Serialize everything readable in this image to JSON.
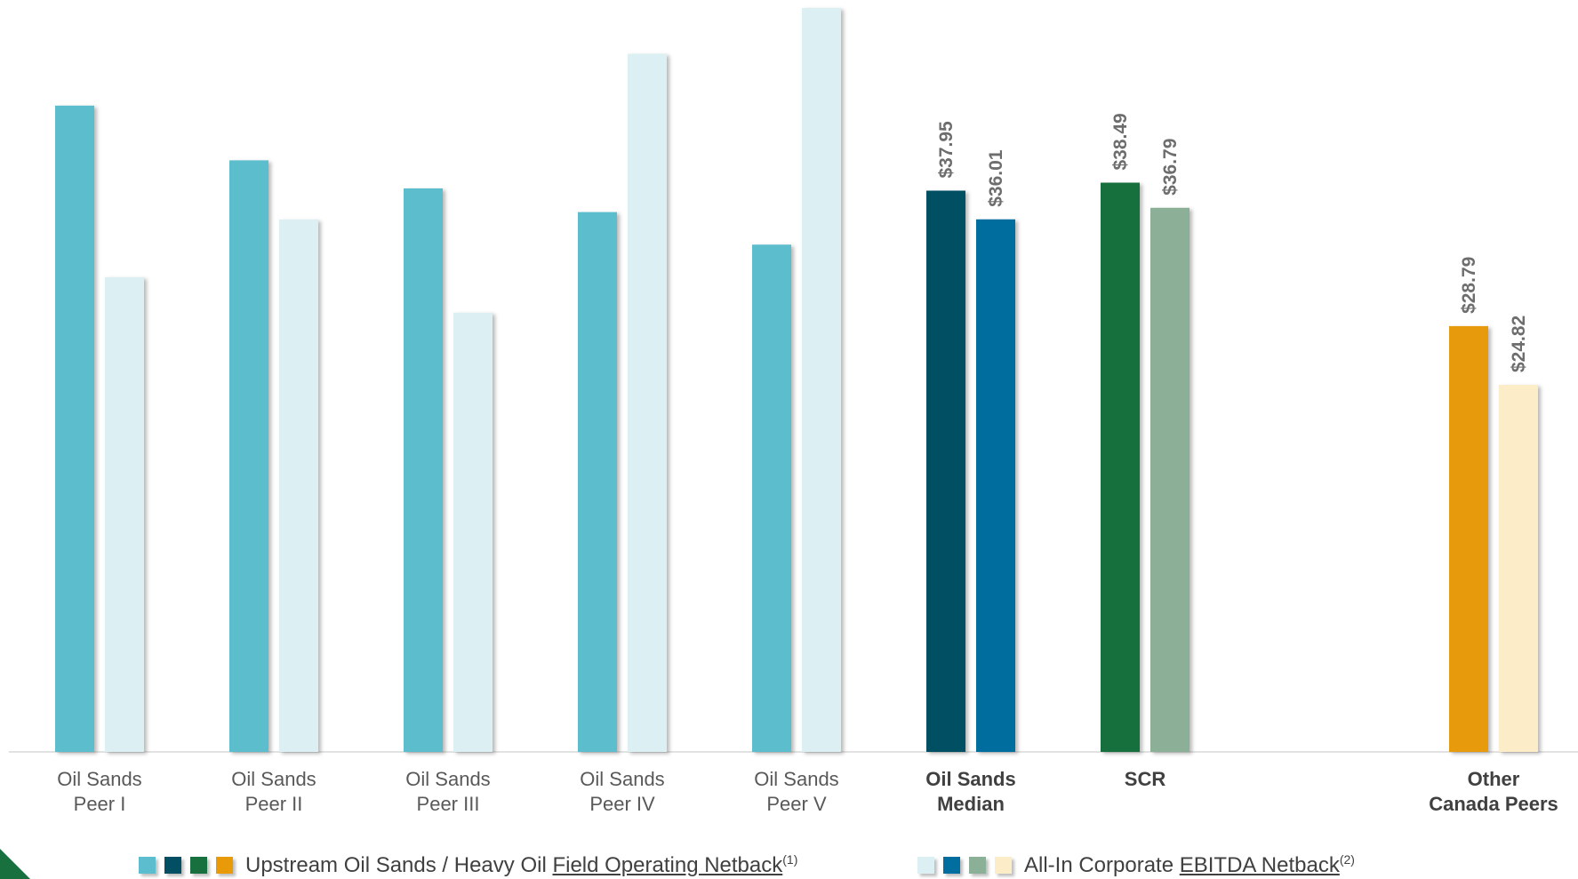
{
  "chart_data": {
    "type": "bar",
    "categories": [
      {
        "lines": [
          "Oil Sands",
          "Peer I"
        ],
        "bold": false
      },
      {
        "lines": [
          "Oil Sands",
          "Peer II"
        ],
        "bold": false
      },
      {
        "lines": [
          "Oil Sands",
          "Peer III"
        ],
        "bold": false
      },
      {
        "lines": [
          "Oil Sands",
          "Peer IV"
        ],
        "bold": false
      },
      {
        "lines": [
          "Oil Sands",
          "Peer V"
        ],
        "bold": false
      },
      {
        "lines": [
          "Oil Sands",
          "Median"
        ],
        "bold": true
      },
      {
        "lines": [
          "SCR"
        ],
        "bold": true
      },
      {
        "lines": [
          "Other",
          "Canada Peers"
        ],
        "bold": true
      }
    ],
    "series": [
      {
        "name": "Upstream Oil Sands / Heavy Oil Field Operating Netback",
        "values": [
          43.7,
          40.0,
          38.1,
          36.5,
          34.3,
          37.95,
          38.49,
          28.79
        ],
        "colors": [
          "#5bbdcd",
          "#5bbdcd",
          "#5bbdcd",
          "#5bbdcd",
          "#5bbdcd",
          "#024f63",
          "#17703e",
          "#e89a08"
        ],
        "labels": [
          "",
          "",
          "",
          "",
          "",
          "$37.95",
          "$38.49",
          "$28.79"
        ]
      },
      {
        "name": "All-In Corporate EBITDA Netback",
        "values": [
          32.1,
          36.0,
          29.7,
          47.2,
          50.3,
          36.01,
          36.79,
          24.82
        ],
        "colors": [
          "#dcf0f3",
          "#dcf0f3",
          "#dcf0f3",
          "#dcf0f3",
          "#dcf0f3",
          "#026d9f",
          "#8caf97",
          "#fdecc8"
        ],
        "labels": [
          "",
          "",
          "",
          "",
          "",
          "$36.01",
          "$36.79",
          "$24.82"
        ]
      }
    ],
    "ylim": [
      0,
      50
    ],
    "grid": false,
    "legend_position": "bottom"
  },
  "legend": {
    "series1": {
      "colors": [
        "#5bbdcd",
        "#024f63",
        "#17703e",
        "#e89a08"
      ],
      "text_plain": "Upstream Oil Sands / Heavy Oil ",
      "text_underlined": "Field Operating Netback",
      "note": "(1)"
    },
    "series2": {
      "colors": [
        "#dcf0f3",
        "#026d9f",
        "#8caf97",
        "#fdecc8"
      ],
      "text_plain": "All-In Corporate ",
      "text_underlined": "EBITDA Netback",
      "note": "(2)"
    }
  }
}
